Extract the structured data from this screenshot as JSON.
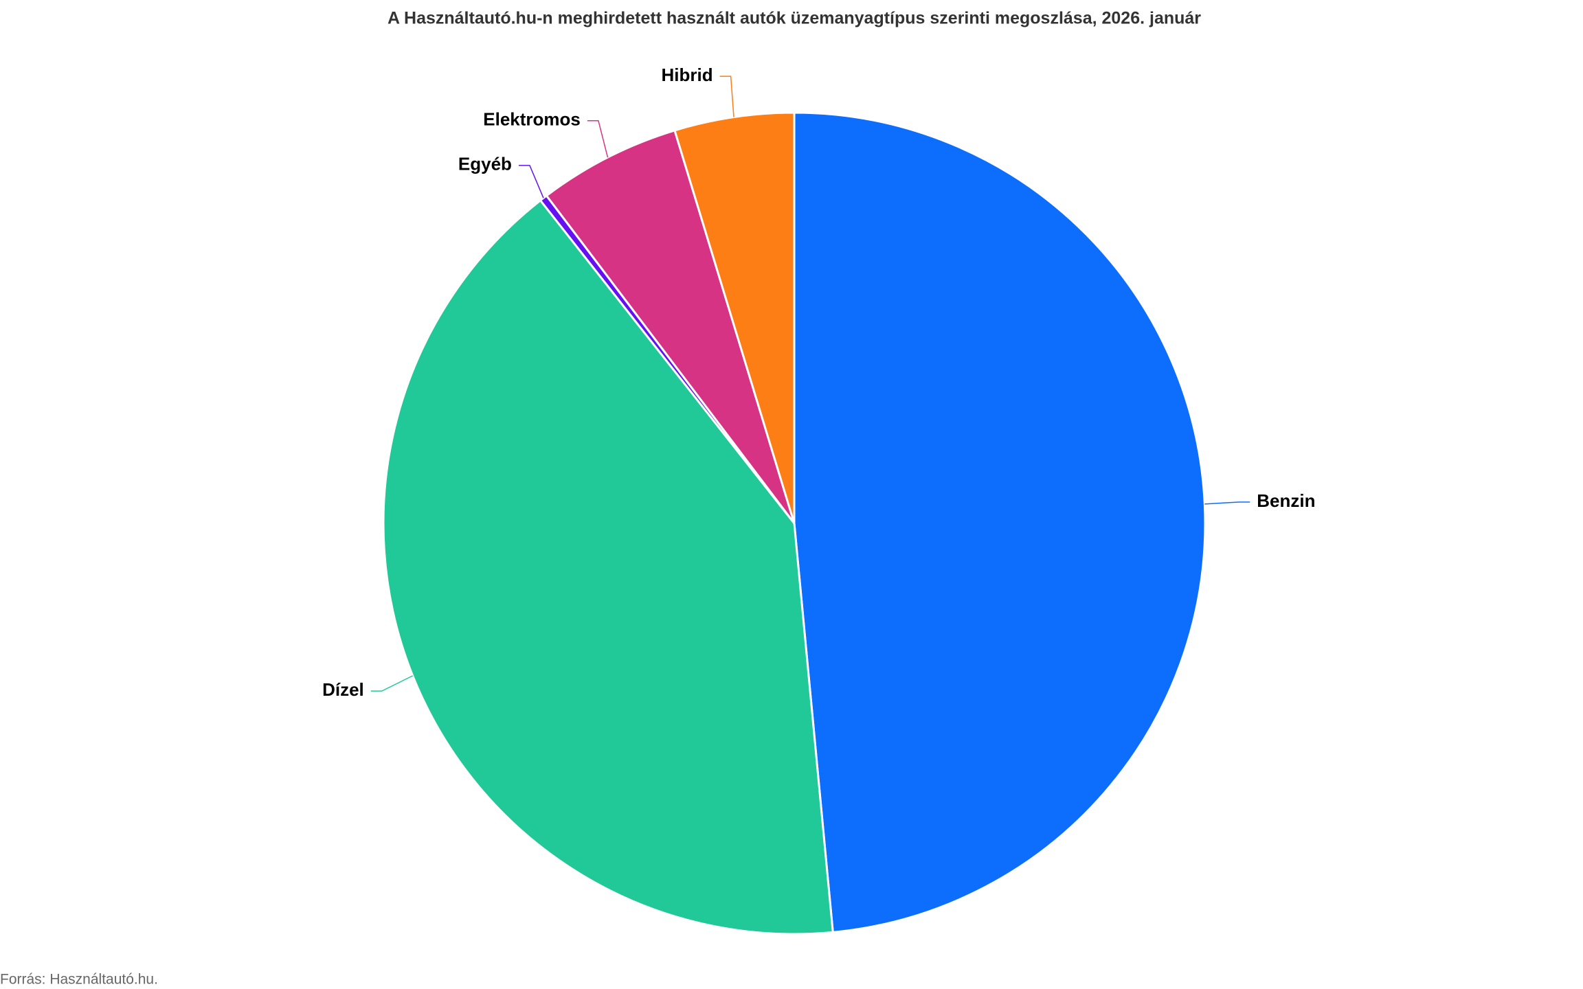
{
  "chart_data": {
    "type": "pie",
    "title": "A Használtautó.hu-n meghirdetett használt autók üzemanyagtípus szerinti megoszlása, 2026. január",
    "categories": [
      "Benzin",
      "Dízel",
      "Egyéb",
      "Elektromos",
      "Hibrid"
    ],
    "values": [
      48.5,
      40.9,
      0.3,
      5.6,
      4.7
    ],
    "colors": [
      "#0d6efd",
      "#20c997",
      "#6610f2",
      "#d63384",
      "#fd7e14"
    ],
    "source": "Forrás: Használtautó.hu."
  }
}
